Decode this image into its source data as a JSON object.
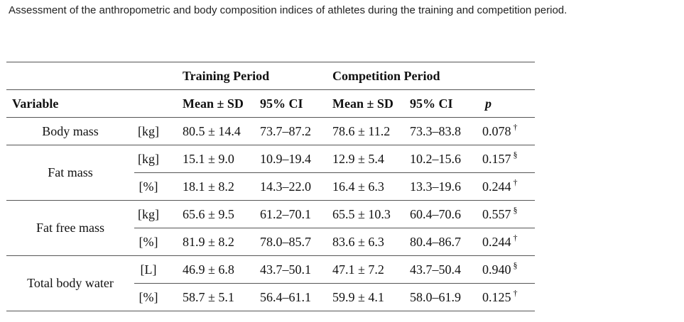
{
  "caption": "Assessment of the anthropometric and body composition indices of athletes during the training and competition period.",
  "header": {
    "training_period": "Training Period",
    "competition_period": "Competition Period",
    "variable": "Variable",
    "mean_sd": "Mean ± SD",
    "ci": "95% CI",
    "p": "p"
  },
  "rows": [
    {
      "variable": "Body mass",
      "unit": "[kg]",
      "t_mean": "80.5 ± 14.4",
      "t_ci": "73.7–87.2",
      "c_mean": "78.6 ± 11.2",
      "c_ci": "73.3–83.8",
      "p": "0.078",
      "mark": "†"
    },
    {
      "variable": "Fat mass",
      "unit": "[kg]",
      "t_mean": "15.1 ± 9.0",
      "t_ci": "10.9–19.4",
      "c_mean": "12.9 ± 5.4",
      "c_ci": "10.2–15.6",
      "p": "0.157",
      "mark": "§"
    },
    {
      "variable": "Fat mass",
      "unit": "[%]",
      "t_mean": "18.1 ± 8.2",
      "t_ci": "14.3–22.0",
      "c_mean": "16.4 ± 6.3",
      "c_ci": "13.3–19.6",
      "p": "0.244",
      "mark": "†"
    },
    {
      "variable": "Fat free mass",
      "unit": "[kg]",
      "t_mean": "65.6 ± 9.5",
      "t_ci": "61.2–70.1",
      "c_mean": "65.5 ± 10.3",
      "c_ci": "60.4–70.6",
      "p": "0.557",
      "mark": "§"
    },
    {
      "variable": "Fat free mass",
      "unit": "[%]",
      "t_mean": "81.9 ± 8.2",
      "t_ci": "78.0–85.7",
      "c_mean": "83.6 ± 6.3",
      "c_ci": "80.4–86.7",
      "p": "0.244",
      "mark": "†"
    },
    {
      "variable": "Total body water",
      "unit": "[L]",
      "t_mean": "46.9 ± 6.8",
      "t_ci": "43.7–50.1",
      "c_mean": "47.1 ± 7.2",
      "c_ci": "43.7–50.4",
      "p": "0.940",
      "mark": "§"
    },
    {
      "variable": "Total body water",
      "unit": "[%]",
      "t_mean": "58.7 ± 5.1",
      "t_ci": "56.4–61.1",
      "c_mean": "59.9 ± 4.1",
      "c_ci": "58.0–61.9",
      "p": "0.125",
      "mark": "†"
    }
  ]
}
